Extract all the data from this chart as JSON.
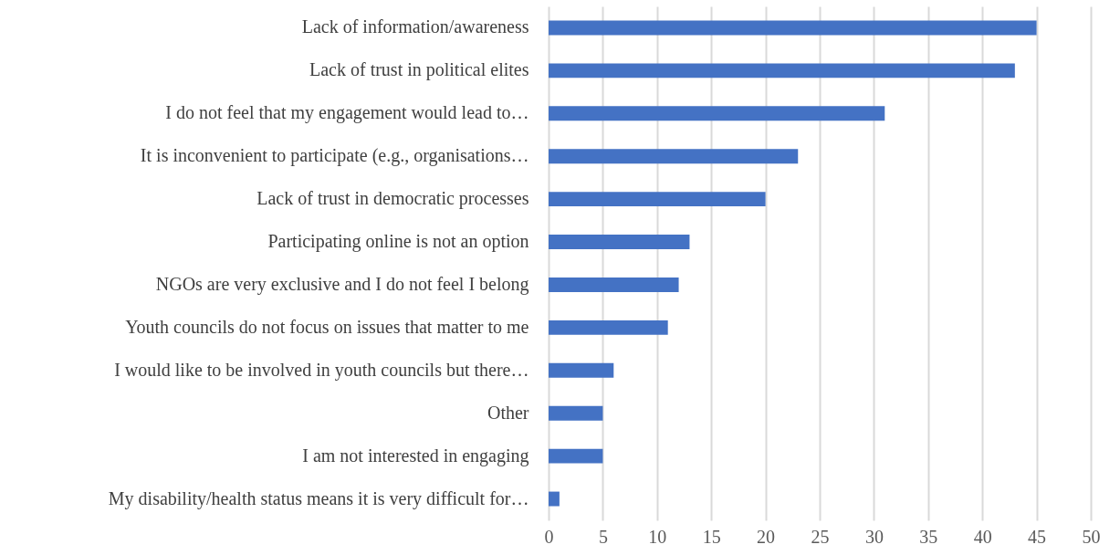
{
  "chart_data": {
    "type": "bar",
    "orientation": "horizontal",
    "categories": [
      "Lack of information/awareness",
      "Lack of trust in political elites",
      "I do not feel that my engagement would lead to…",
      "It is inconvenient to participate (e.g., organisations…",
      "Lack of trust in democratic processes",
      "Participating online is not an option",
      "NGOs are very exclusive and I do not feel I belong",
      "Youth councils do not focus on issues that matter to me",
      "I would like to be involved in youth councils but there…",
      "Other",
      "I am not interested in engaging",
      "My disability/health status means it is very difficult for…"
    ],
    "values": [
      45,
      43,
      31,
      23,
      20,
      13,
      12,
      11,
      6,
      5,
      5,
      1
    ],
    "color": "#4472c4",
    "xlim": [
      0,
      50
    ],
    "xticks": [
      0,
      5,
      10,
      15,
      20,
      25,
      30,
      35,
      40,
      45,
      50
    ],
    "grid": "x"
  }
}
